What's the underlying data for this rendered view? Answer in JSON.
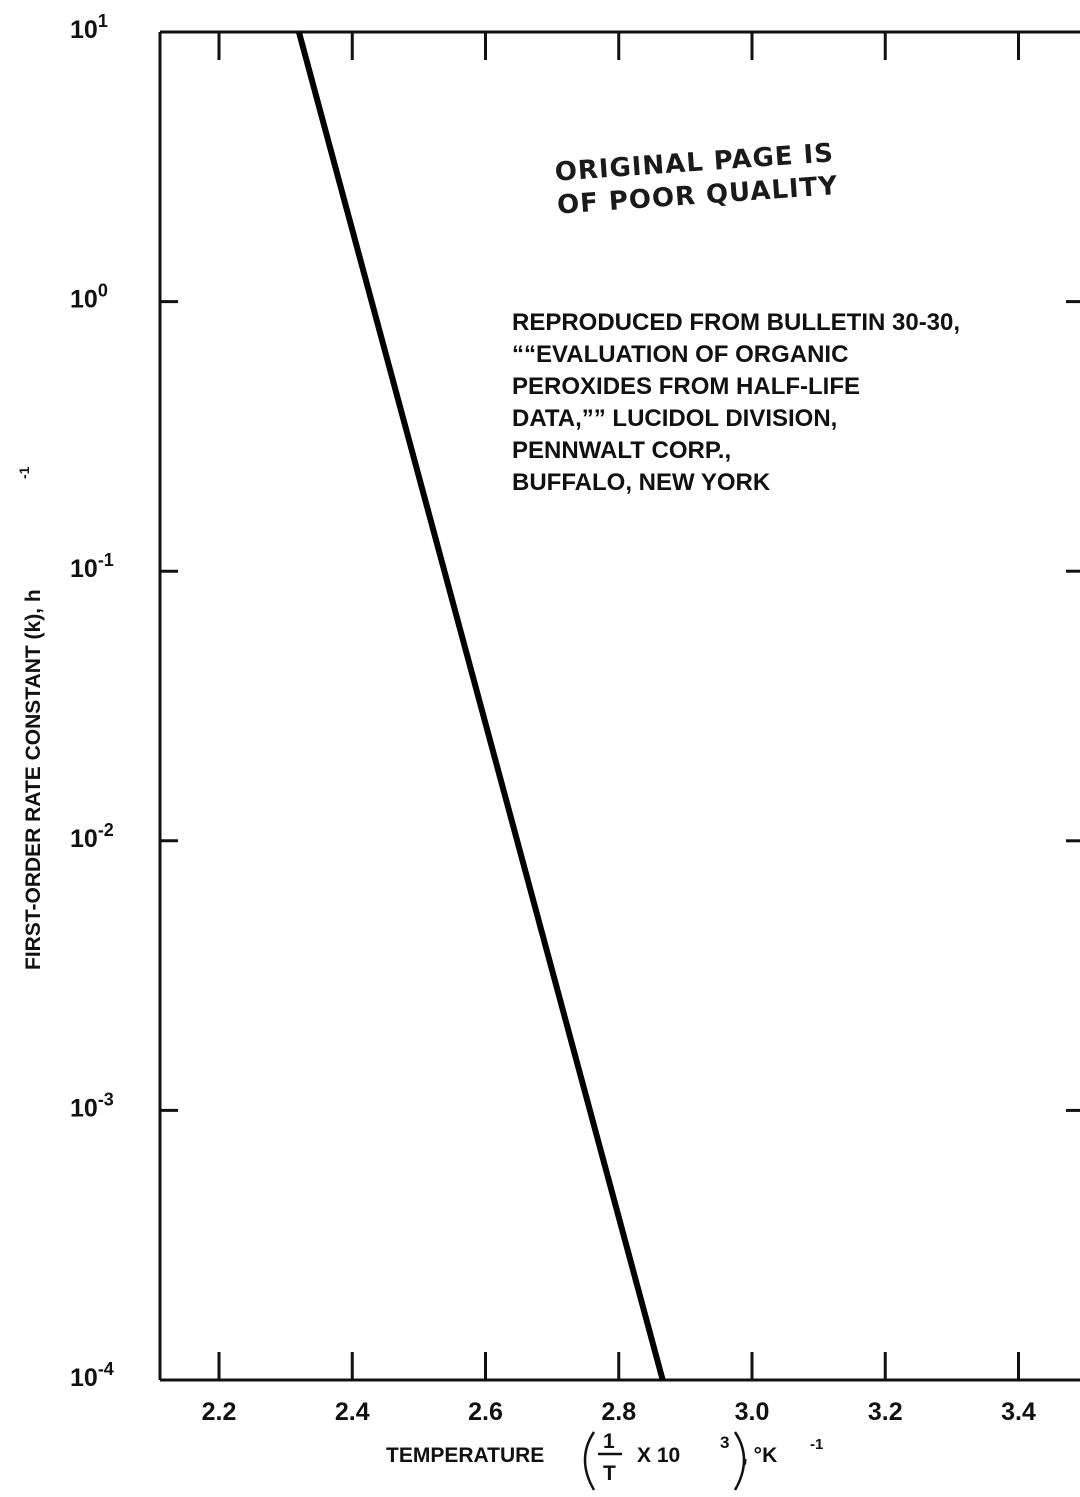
{
  "chart_data": {
    "type": "line",
    "title": "",
    "xlabel": "TEMPERATURE",
    "xlabel_fraction_numerator": "1",
    "xlabel_fraction_denominator": "T",
    "xlabel_multiplier": "X 10",
    "xlabel_exponent": "3",
    "xlabel_unit": ", °K",
    "xlabel_unit_exponent": "-1",
    "ylabel": "FIRST-ORDER RATE CONSTANT (k), h",
    "ylabel_exponent": "-1",
    "x_scale": "linear",
    "y_scale": "log",
    "xlim": [
      2.1,
      3.47
    ],
    "ylim": [
      0.0001,
      10
    ],
    "grid": false,
    "x_ticks": [
      {
        "value": 2.2,
        "label": "2.2"
      },
      {
        "value": 2.4,
        "label": "2.4"
      },
      {
        "value": 2.6,
        "label": "2.6"
      },
      {
        "value": 2.8,
        "label": "2.8"
      },
      {
        "value": 3.0,
        "label": "3.0"
      },
      {
        "value": 3.2,
        "label": "3.2"
      },
      {
        "value": 3.4,
        "label": "3.4"
      }
    ],
    "y_ticks": [
      {
        "value": 10,
        "base": "10",
        "exp": "1"
      },
      {
        "value": 1,
        "base": "10",
        "exp": "0"
      },
      {
        "value": 0.1,
        "base": "10",
        "exp": "-1"
      },
      {
        "value": 0.01,
        "base": "10",
        "exp": "-2"
      },
      {
        "value": 0.001,
        "base": "10",
        "exp": "-3"
      },
      {
        "value": 0.0001,
        "base": "10",
        "exp": "-4"
      }
    ],
    "series": [
      {
        "points": [
          [
            2.32,
            10
          ],
          [
            2.866,
            0.0001
          ]
        ],
        "color": "#000000"
      }
    ],
    "annotation_lines": [
      "REPRODUCED FROM BULLETIN 30-30,",
      "““EVALUATION OF ORGANIC",
      "PEROXIDES FROM HALF-LIFE",
      "DATA,”” LUCIDOL DIVISION,",
      "PENNWALT CORP.,",
      "BUFFALO, NEW YORK"
    ],
    "stamp_lines": [
      "ORIGINAL  PAGE  IS",
      "OF  POOR  QUALITY"
    ]
  }
}
